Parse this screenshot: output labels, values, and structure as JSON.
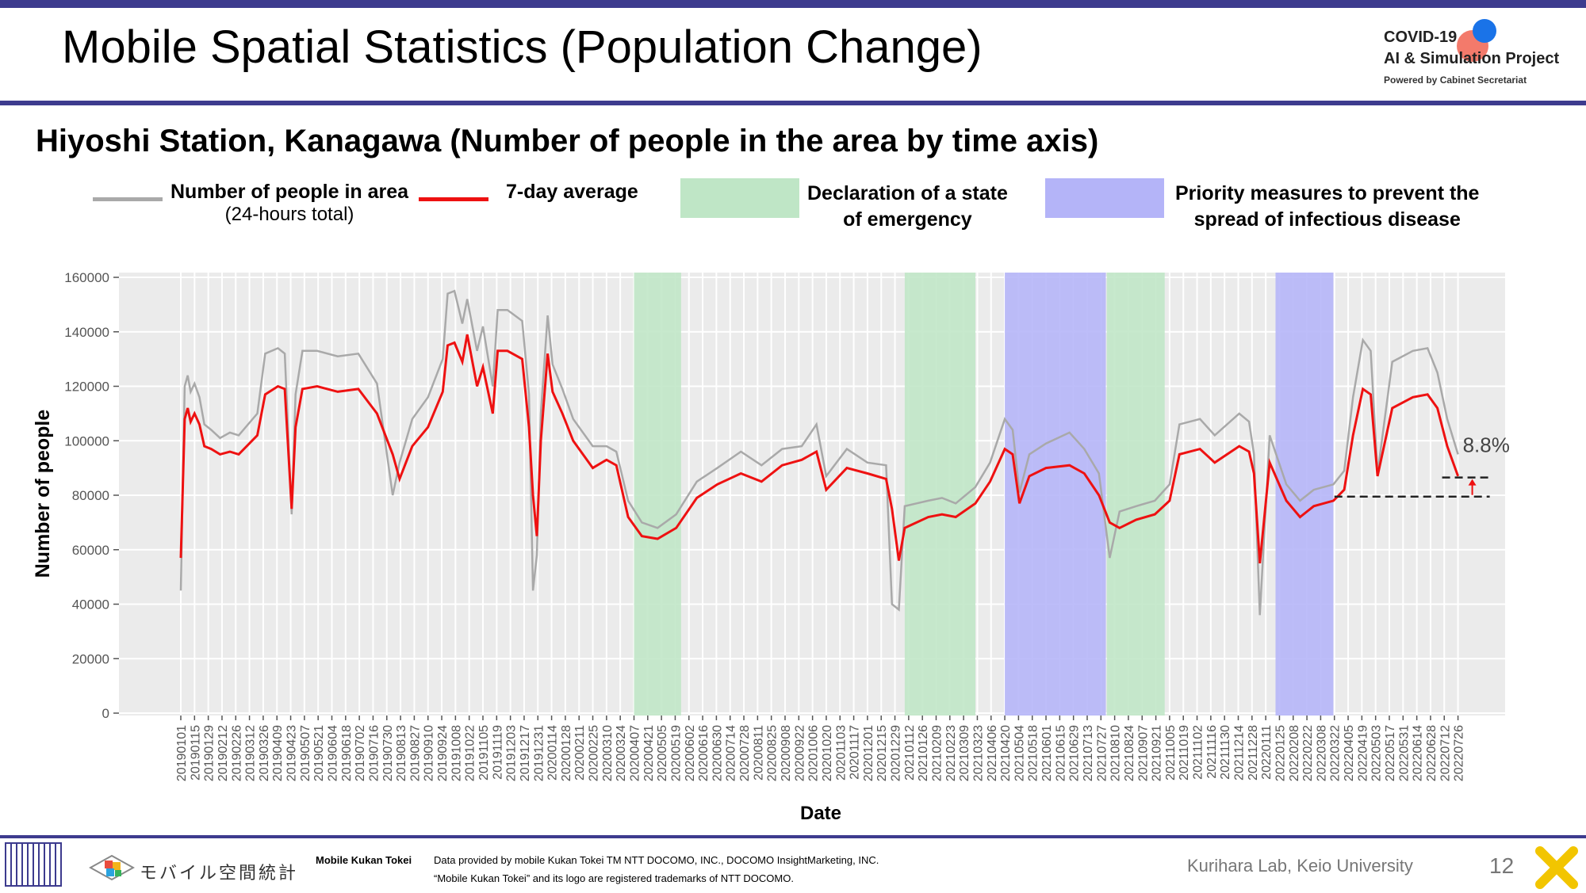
{
  "slide": {
    "title": "Mobile Spatial Statistics (Population Change)",
    "logo_line1": "COVID-19",
    "logo_line2": "AI & Simulation Project",
    "logo_line3": "Powered by Cabinet Secretariat",
    "page_number": "12"
  },
  "footer": {
    "brand_jp": "モバイル空間統計",
    "brand_en": "Mobile Kukan Tokei",
    "credit_line1": "Data provided by mobile Kukan Tokei TM NTT DOCOMO, INC., DOCOMO InsightMarketing, INC.",
    "credit_line2": "“Mobile Kukan Tokei” and its logo are registered trademarks of NTT DOCOMO.",
    "lab": "Kurihara Lab, Keio University"
  },
  "legend": {
    "people_label": "Number of people in area",
    "people_sub": "(24-hours total)",
    "avg_label": "7-day average",
    "emergency_label_1": "Declaration of a state",
    "emergency_label_2": "of emergency",
    "priority_label_1": "Priority measures to prevent the",
    "priority_label_2": "spread of infectious disease"
  },
  "colors": {
    "daily": "#a9a9a9",
    "average": "#ee1111",
    "emergency": "#bfe6c6",
    "priority": "#b4b4f8",
    "plot_bg": "#ebebeb",
    "brand": "#3d3b8e"
  },
  "chart_data": {
    "type": "line",
    "title": "Hiyoshi Station, Kanagawa (Number of people in the area by time axis)",
    "xlabel": "Date",
    "ylabel": "Number of people",
    "ylim": [
      0,
      160000
    ],
    "yticks": [
      0,
      20000,
      40000,
      60000,
      80000,
      100000,
      120000,
      140000,
      160000
    ],
    "grid": true,
    "xticks": [
      "20190101",
      "20190115",
      "20190129",
      "20190212",
      "20190226",
      "20190312",
      "20190326",
      "20190409",
      "20190423",
      "20190507",
      "20190521",
      "20190604",
      "20190618",
      "20190702",
      "20190716",
      "20190730",
      "20190813",
      "20190827",
      "20190910",
      "20190924",
      "20191008",
      "20191022",
      "20191105",
      "20191119",
      "20191203",
      "20191217",
      "20191231",
      "20200114",
      "20200128",
      "20200211",
      "20200225",
      "20200310",
      "20200324",
      "20200407",
      "20200421",
      "20200505",
      "20200519",
      "20200602",
      "20200616",
      "20200630",
      "20200714",
      "20200728",
      "20200811",
      "20200825",
      "20200908",
      "20200922",
      "20201006",
      "20201020",
      "20201103",
      "20201117",
      "20201201",
      "20201215",
      "20201229",
      "20210112",
      "20210126",
      "20210209",
      "20210223",
      "20210309",
      "20210323",
      "20210406",
      "20210420",
      "20210504",
      "20210518",
      "20210601",
      "20210615",
      "20210629",
      "20210713",
      "20210727",
      "20210810",
      "20210824",
      "20210907",
      "20210921",
      "20211005",
      "20211019",
      "20211102",
      "20211116",
      "20211130",
      "20211214",
      "20211228",
      "20220111",
      "20220125",
      "20220208",
      "20220222",
      "20220308",
      "20220322",
      "20220405",
      "20220419",
      "20220503",
      "20220517",
      "20220531",
      "20220614",
      "20220628",
      "20220712",
      "20220726"
    ],
    "shaded_periods": [
      {
        "type": "emergency",
        "start": "20200407",
        "end": "20200525"
      },
      {
        "type": "emergency",
        "start": "20210108",
        "end": "20210321"
      },
      {
        "type": "priority",
        "start": "20210420",
        "end": "20210801"
      },
      {
        "type": "emergency",
        "start": "20210802",
        "end": "20210930"
      },
      {
        "type": "priority",
        "start": "20220121",
        "end": "20220321"
      }
    ],
    "series": [
      {
        "name": "7-day average",
        "x": [
          "20190101",
          "20190105",
          "20190108",
          "20190111",
          "20190115",
          "20190120",
          "20190125",
          "20190201",
          "20190210",
          "20190220",
          "20190301",
          "20190320",
          "20190328",
          "20190410",
          "20190417",
          "20190424",
          "20190428",
          "20190505",
          "20190520",
          "20190610",
          "20190701",
          "20190720",
          "20190805",
          "20190812",
          "20190825",
          "20190910",
          "20190925",
          "20190930",
          "20191007",
          "20191015",
          "20191020",
          "20191030",
          "20191105",
          "20191115",
          "20191120",
          "20191130",
          "20191215",
          "20191222",
          "20191226",
          "20191230",
          "20200103",
          "20200110",
          "20200115",
          "20200125",
          "20200205",
          "20200225",
          "20200310",
          "20200320",
          "20200401",
          "20200415",
          "20200501",
          "20200520",
          "20200610",
          "20200701",
          "20200725",
          "20200815",
          "20200905",
          "20200925",
          "20201010",
          "20201020",
          "20201110",
          "20201201",
          "20201220",
          "20201226",
          "20210102",
          "20210108",
          "20210120",
          "20210201",
          "20210215",
          "20210301",
          "20210321",
          "20210405",
          "20210420",
          "20210428",
          "20210505",
          "20210515",
          "20210601",
          "20210625",
          "20210710",
          "20210725",
          "20210805",
          "20210815",
          "20210901",
          "20210920",
          "20211005",
          "20211015",
          "20211105",
          "20211120",
          "20211215",
          "20211225",
          "20211230",
          "20220105",
          "20220115",
          "20220201",
          "20220215",
          "20220301",
          "20220321",
          "20220401",
          "20220410",
          "20220420",
          "20220428",
          "20220505",
          "20220520",
          "20220610",
          "20220625",
          "20220705",
          "20220715",
          "20220726"
        ],
        "y": [
          57000,
          108000,
          112000,
          107000,
          110000,
          106000,
          98000,
          97000,
          95000,
          96000,
          95000,
          102000,
          117000,
          120000,
          119000,
          75000,
          105000,
          119000,
          120000,
          118000,
          119000,
          110000,
          95000,
          86000,
          98000,
          105000,
          118000,
          135000,
          136000,
          129000,
          139000,
          120000,
          127000,
          110000,
          133000,
          133000,
          130000,
          105000,
          80000,
          65000,
          100000,
          132000,
          118000,
          110000,
          100000,
          90000,
          93000,
          91000,
          72000,
          65000,
          64000,
          68000,
          79000,
          84000,
          88000,
          85000,
          91000,
          93000,
          96000,
          82000,
          90000,
          88000,
          86000,
          75000,
          56000,
          68000,
          70000,
          72000,
          73000,
          72000,
          77000,
          85000,
          97000,
          95000,
          77000,
          87000,
          90000,
          91000,
          88000,
          80000,
          70000,
          68000,
          71000,
          73000,
          78000,
          95000,
          97000,
          92000,
          98000,
          96000,
          88000,
          55000,
          92000,
          78000,
          72000,
          76000,
          78000,
          82000,
          102000,
          119000,
          117000,
          87000,
          112000,
          116000,
          117000,
          112000,
          98000,
          87000
        ]
      },
      {
        "name": "Number of people in area (24-hours total)",
        "x": [
          "20190101",
          "20190105",
          "20190108",
          "20190111",
          "20190115",
          "20190120",
          "20190125",
          "20190201",
          "20190210",
          "20190220",
          "20190301",
          "20190320",
          "20190328",
          "20190410",
          "20190417",
          "20190424",
          "20190428",
          "20190505",
          "20190520",
          "20190610",
          "20190701",
          "20190720",
          "20190805",
          "20190812",
          "20190825",
          "20190910",
          "20190925",
          "20190930",
          "20191007",
          "20191015",
          "20191020",
          "20191030",
          "20191105",
          "20191115",
          "20191120",
          "20191130",
          "20191215",
          "20191222",
          "20191226",
          "20191230",
          "20200103",
          "20200110",
          "20200115",
          "20200125",
          "20200205",
          "20200225",
          "20200310",
          "20200320",
          "20200401",
          "20200415",
          "20200501",
          "20200520",
          "20200610",
          "20200701",
          "20200725",
          "20200815",
          "20200905",
          "20200925",
          "20201010",
          "20201020",
          "20201110",
          "20201201",
          "20201220",
          "20201226",
          "20210102",
          "20210108",
          "20210120",
          "20210201",
          "20210215",
          "20210301",
          "20210321",
          "20210405",
          "20210420",
          "20210428",
          "20210505",
          "20210515",
          "20210601",
          "20210625",
          "20210710",
          "20210725",
          "20210805",
          "20210815",
          "20210901",
          "20210920",
          "20211005",
          "20211015",
          "20211105",
          "20211120",
          "20211215",
          "20211225",
          "20211230",
          "20220105",
          "20220115",
          "20220201",
          "20220215",
          "20220301",
          "20220321",
          "20220401",
          "20220410",
          "20220420",
          "20220428",
          "20220505",
          "20220520",
          "20220610",
          "20220625",
          "20220705",
          "20220715",
          "20220726"
        ],
        "y": [
          45000,
          120000,
          124000,
          118000,
          121000,
          116000,
          106000,
          104000,
          101000,
          103000,
          102000,
          110000,
          132000,
          134000,
          132000,
          73000,
          117000,
          133000,
          133000,
          131000,
          132000,
          121000,
          80000,
          92000,
          108000,
          116000,
          130000,
          154000,
          155000,
          143000,
          152000,
          133000,
          142000,
          120000,
          148000,
          148000,
          144000,
          117000,
          45000,
          58000,
          110000,
          146000,
          128000,
          119000,
          108000,
          98000,
          98000,
          96000,
          78000,
          70000,
          68000,
          73000,
          85000,
          90000,
          96000,
          91000,
          97000,
          98000,
          106000,
          87000,
          97000,
          92000,
          91000,
          40000,
          38000,
          76000,
          77000,
          78000,
          79000,
          77000,
          83000,
          92000,
          108000,
          104000,
          81000,
          95000,
          99000,
          103000,
          97000,
          88000,
          57000,
          74000,
          76000,
          78000,
          84000,
          106000,
          108000,
          102000,
          110000,
          107000,
          95000,
          36000,
          102000,
          84000,
          78000,
          82000,
          84000,
          89000,
          116000,
          137000,
          133000,
          88000,
          129000,
          133000,
          134000,
          125000,
          108000,
          95000
        ]
      }
    ],
    "annotation": {
      "text": "8.8%",
      "from_value": 79500,
      "to_value": 86500,
      "from_x": "20220322",
      "to_x": "20220726"
    }
  }
}
